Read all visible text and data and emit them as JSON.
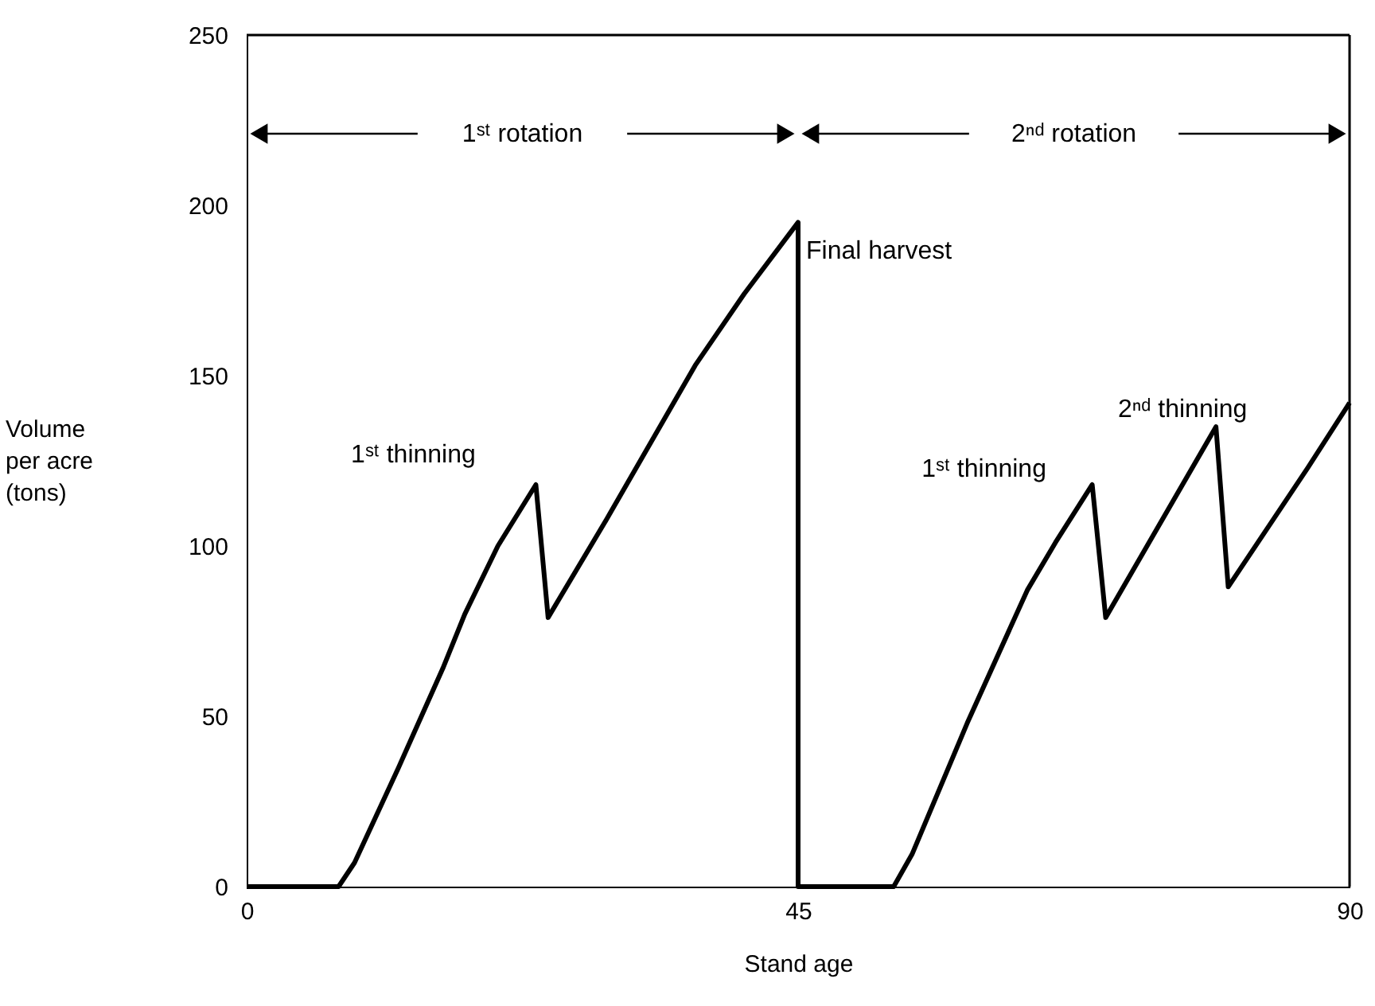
{
  "chart_data": {
    "type": "line",
    "xlabel": "Stand age",
    "ylabel": "Volume per acre (tons)",
    "x": [
      0,
      7.5,
      8.8,
      12.4,
      16.0,
      17.8,
      20.5,
      23.6,
      24.6,
      29.4,
      36.6,
      40.6,
      45,
      45,
      52.8,
      54.3,
      58.8,
      63.7,
      66.0,
      69.0,
      70.1,
      79.1,
      80.1,
      86.6,
      90
    ],
    "series": [
      {
        "color": "#000000",
        "values": [
          0,
          0,
          7,
          35,
          64,
          80,
          100,
          118,
          79,
          108,
          153,
          174,
          195,
          0,
          0,
          9.5,
          48,
          87,
          101,
          118,
          79,
          135,
          88,
          123,
          142
        ]
      }
    ],
    "xlim": [
      0,
      90
    ],
    "xticks": [
      0,
      45,
      90
    ],
    "ylim": [
      0,
      250
    ],
    "yticks": [
      0,
      50,
      100,
      150,
      200,
      250
    ],
    "grid": false,
    "marker": "none",
    "line_style": "solid",
    "annotations": [
      "1ˢᵗ rotation",
      "2ⁿᵈ rotation",
      {
        "text": "Final harvest",
        "x": 45,
        "y": 195
      },
      {
        "text": "1ˢᵗ thinning",
        "x": 23.6,
        "y": 118
      },
      {
        "text": "1ˢᵗ thinning",
        "x": 69.0,
        "y": 118
      },
      {
        "text": "2ⁿᵈ thinning",
        "x": 79.1,
        "y": 135
      }
    ]
  }
}
